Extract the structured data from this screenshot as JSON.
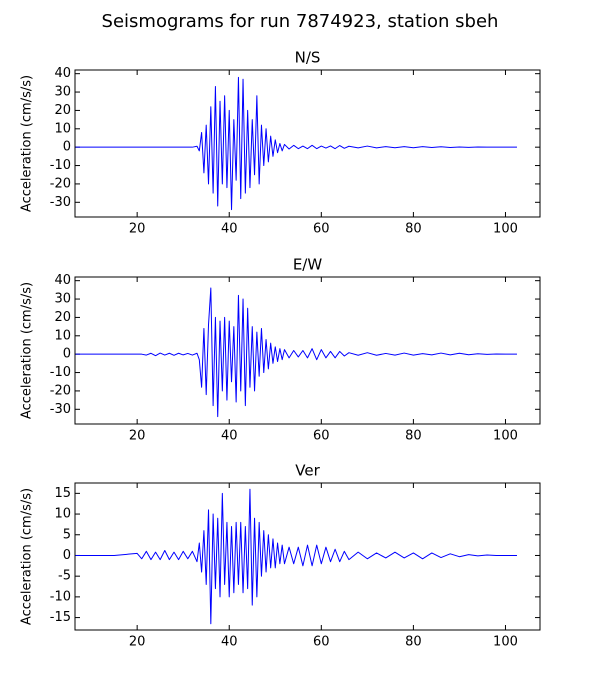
{
  "title": "Seismograms for run 7874923, station sbeh",
  "chart_data": [
    {
      "type": "line",
      "title": "N/S",
      "ylabel": "Acceleration (cm/s/s)",
      "color": "#0000ff",
      "xlim": [
        6.5,
        107.5
      ],
      "ylim": [
        -38,
        42
      ],
      "xticks": [
        20,
        40,
        60,
        80,
        100
      ],
      "yticks": [
        -30,
        -20,
        -10,
        0,
        10,
        20,
        30,
        40
      ],
      "x": [
        6.5,
        10,
        15,
        20,
        21,
        22,
        23,
        24,
        25,
        26,
        27,
        28,
        29,
        30,
        31,
        32,
        33,
        33.5,
        34,
        34.5,
        35,
        35.5,
        36,
        36.5,
        37,
        37.5,
        38,
        38.5,
        39,
        39.5,
        40,
        40.5,
        41,
        41.5,
        42,
        42.5,
        43,
        43.5,
        44,
        44.5,
        45,
        45.5,
        46,
        46.5,
        47,
        47.5,
        48,
        48.5,
        49,
        49.5,
        50,
        50.5,
        51,
        51.5,
        52,
        53,
        54,
        55,
        56,
        57,
        58,
        59,
        60,
        61,
        62,
        63,
        64,
        65,
        66,
        68,
        70,
        72,
        74,
        76,
        78,
        80,
        82,
        84,
        86,
        88,
        90,
        92,
        94,
        96,
        98,
        100,
        102.5
      ],
      "values": [
        0,
        0,
        0,
        0,
        0,
        0,
        0,
        0,
        0,
        0,
        0,
        0,
        0,
        0,
        0,
        0,
        0.5,
        -2,
        8,
        -14,
        12,
        -20,
        22,
        -25,
        33,
        -32,
        25,
        -20,
        28,
        -22,
        20,
        -34,
        15,
        -18,
        38,
        -28,
        37,
        -25,
        20,
        -22,
        15,
        -15,
        28,
        -20,
        12,
        -10,
        10,
        -8,
        6,
        -5,
        4,
        -3,
        2,
        -2,
        1.5,
        -1,
        1,
        -0.8,
        0.6,
        -0.8,
        1,
        -0.8,
        0.6,
        -0.5,
        0.7,
        -0.8,
        0.9,
        -0.6,
        0.5,
        -0.4,
        0.6,
        -0.4,
        0.3,
        -0.3,
        0.3,
        -0.3,
        0.3,
        -0.2,
        0.2,
        -0.2,
        0.1,
        -0.1,
        0.1,
        0,
        0,
        0,
        0
      ]
    },
    {
      "type": "line",
      "title": "E/W",
      "ylabel": "Acceleration (cm/s/s)",
      "color": "#0000ff",
      "xlim": [
        6.5,
        107.5
      ],
      "ylim": [
        -38,
        42
      ],
      "xticks": [
        20,
        40,
        60,
        80,
        100
      ],
      "yticks": [
        -30,
        -20,
        -10,
        0,
        10,
        20,
        30,
        40
      ],
      "x": [
        6.5,
        10,
        15,
        20,
        21,
        22,
        23,
        24,
        25,
        26,
        27,
        28,
        29,
        30,
        31,
        32,
        33,
        33.5,
        34,
        34.5,
        35,
        35.5,
        36,
        36.5,
        37,
        37.5,
        38,
        38.5,
        39,
        39.5,
        40,
        40.5,
        41,
        41.5,
        42,
        42.5,
        43,
        43.5,
        44,
        44.5,
        45,
        45.5,
        46,
        46.5,
        47,
        47.5,
        48,
        48.5,
        49,
        49.5,
        50,
        50.5,
        51,
        51.5,
        52,
        53,
        54,
        55,
        56,
        57,
        58,
        59,
        60,
        61,
        62,
        63,
        64,
        65,
        66,
        68,
        70,
        72,
        74,
        76,
        78,
        80,
        82,
        84,
        86,
        88,
        90,
        92,
        94,
        96,
        98,
        100,
        102.5
      ],
      "values": [
        0,
        0,
        0,
        0,
        0,
        -0.5,
        0.5,
        -0.8,
        0.6,
        -0.5,
        0.5,
        -0.6,
        0.5,
        -0.4,
        0.4,
        -0.5,
        0.5,
        -3,
        -18,
        14,
        -22,
        16,
        36,
        -28,
        20,
        -34,
        18,
        -20,
        20,
        -25,
        18,
        -15,
        15,
        -26,
        32,
        -20,
        30,
        -28,
        25,
        -18,
        15,
        -20,
        12,
        -12,
        14,
        -10,
        8,
        -8,
        6,
        -5,
        4,
        -4,
        3,
        -3,
        2.5,
        -2,
        2,
        -1.5,
        2,
        -2,
        3,
        -3,
        2.5,
        -2,
        1.5,
        -2,
        1.5,
        -1,
        0.8,
        -0.6,
        0.8,
        -0.6,
        0.4,
        -0.5,
        0.6,
        -0.5,
        0.3,
        -0.4,
        0.6,
        -0.4,
        0.5,
        -0.3,
        0.2,
        -0.1,
        0.1,
        0,
        0
      ]
    },
    {
      "type": "line",
      "title": "Ver",
      "ylabel": "Acceleration (cm/s/s)",
      "color": "#0000ff",
      "xlim": [
        6.5,
        107.5
      ],
      "ylim": [
        -18,
        17.5
      ],
      "xticks": [
        20,
        40,
        60,
        80,
        100
      ],
      "yticks": [
        -15,
        -10,
        -5,
        0,
        5,
        10,
        15
      ],
      "x": [
        6.5,
        10,
        15,
        20,
        21,
        22,
        23,
        24,
        25,
        26,
        27,
        28,
        29,
        30,
        31,
        32,
        33,
        33.5,
        34,
        34.5,
        35,
        35.5,
        36,
        36.5,
        37,
        37.5,
        38,
        38.5,
        39,
        39.5,
        40,
        40.5,
        41,
        41.5,
        42,
        42.5,
        43,
        43.5,
        44,
        44.5,
        45,
        45.5,
        46,
        46.5,
        47,
        47.5,
        48,
        48.5,
        49,
        49.5,
        50,
        50.5,
        51,
        51.5,
        52,
        53,
        54,
        55,
        56,
        57,
        58,
        59,
        60,
        61,
        62,
        63,
        64,
        65,
        66,
        68,
        70,
        72,
        74,
        76,
        78,
        80,
        82,
        84,
        86,
        88,
        90,
        92,
        94,
        96,
        98,
        100,
        102.5
      ],
      "values": [
        0,
        0,
        0,
        0.5,
        -0.8,
        1,
        -1,
        0.8,
        -1,
        1.2,
        -1,
        0.8,
        -1,
        1,
        -0.8,
        1,
        -1.5,
        3,
        -4,
        6,
        -7,
        11,
        -16.5,
        10,
        -8,
        9,
        -10,
        15,
        -7,
        8,
        -10,
        7,
        -9,
        8,
        -7,
        8,
        -9,
        7,
        -8,
        16,
        -12,
        9,
        -10,
        8,
        -5,
        6,
        -4,
        5,
        -3,
        4,
        -3,
        3,
        -2,
        2.5,
        -2,
        2,
        -2,
        2,
        -2.5,
        2.5,
        -2.5,
        2.5,
        -2,
        2,
        -1.5,
        1.5,
        -1.5,
        1,
        -1,
        0.8,
        -0.8,
        0.6,
        -0.6,
        0.8,
        -0.6,
        0.6,
        -0.8,
        0.6,
        -0.5,
        0.4,
        -0.3,
        0.2,
        -0.1,
        0.1,
        0,
        0,
        0
      ]
    }
  ]
}
